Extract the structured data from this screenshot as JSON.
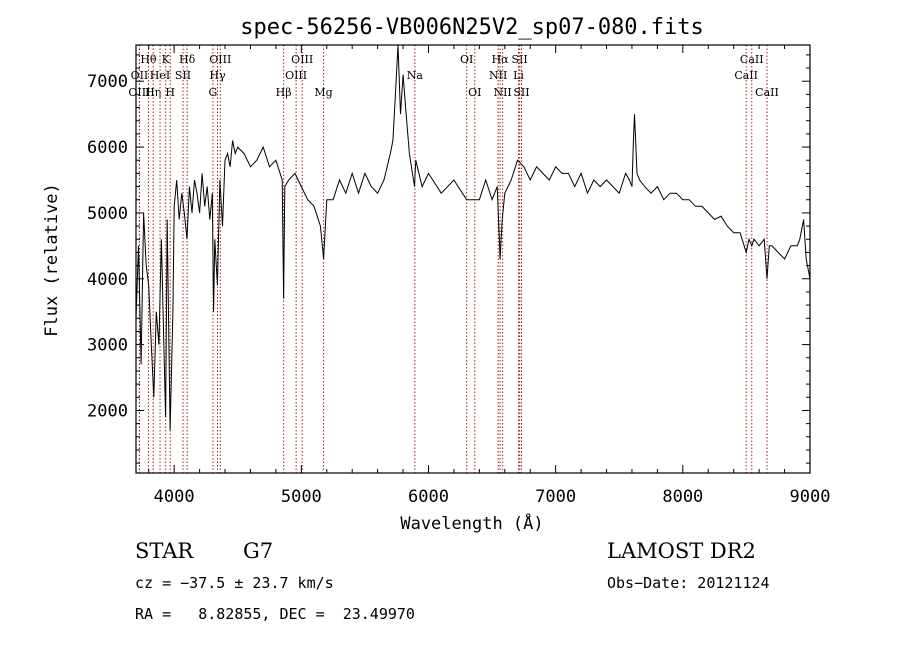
{
  "chart_data": {
    "type": "line",
    "title": "spec-56256-VB006N25V2_sp07-080.fits",
    "xlabel": "Wavelength (Å)",
    "ylabel": "Flux (relative)",
    "xlim": [
      3700,
      9000
    ],
    "ylim": [
      1050,
      7550
    ],
    "xticks": [
      4000,
      5000,
      6000,
      7000,
      8000,
      9000
    ],
    "yticks": [
      2000,
      3000,
      4000,
      5000,
      6000,
      7000
    ],
    "grid": false,
    "series": [
      {
        "x": [
          3700,
          3720,
          3740,
          3760,
          3780,
          3800,
          3820,
          3840,
          3860,
          3880,
          3900,
          3920,
          3933,
          3945,
          3968,
          3990,
          4000,
          4020,
          4040,
          4060,
          4080,
          4101,
          4120,
          4140,
          4160,
          4180,
          4200,
          4220,
          4240,
          4260,
          4280,
          4300,
          4310,
          4320,
          4340,
          4360,
          4380,
          4400,
          4420,
          4440,
          4460,
          4480,
          4500,
          4550,
          4600,
          4650,
          4700,
          4750,
          4800,
          4850,
          4861,
          4870,
          4900,
          4950,
          5000,
          5050,
          5100,
          5150,
          5175,
          5200,
          5250,
          5300,
          5350,
          5400,
          5450,
          5500,
          5550,
          5600,
          5650,
          5700,
          5720,
          5740,
          5760,
          5780,
          5800,
          5820,
          5850,
          5890,
          5900,
          5950,
          6000,
          6100,
          6200,
          6300,
          6400,
          6450,
          6500,
          6540,
          6563,
          6580,
          6600,
          6650,
          6700,
          6750,
          6800,
          6850,
          6900,
          6950,
          7000,
          7050,
          7100,
          7150,
          7200,
          7250,
          7300,
          7350,
          7400,
          7450,
          7500,
          7550,
          7580,
          7600,
          7610,
          7620,
          7640,
          7660,
          7700,
          7750,
          7800,
          7850,
          7900,
          7950,
          8000,
          8050,
          8100,
          8150,
          8200,
          8250,
          8300,
          8350,
          8400,
          8450,
          8498,
          8520,
          8542,
          8560,
          8600,
          8640,
          8662,
          8680,
          8700,
          8750,
          8800,
          8850,
          8900,
          8920,
          8950,
          8970,
          9000
        ],
        "y": [
          3400,
          4500,
          2700,
          5000,
          4200,
          3900,
          3000,
          2200,
          3500,
          3000,
          4600,
          2900,
          1900,
          4900,
          1700,
          3500,
          5100,
          5500,
          4900,
          5300,
          5000,
          4600,
          5400,
          5000,
          5500,
          5300,
          5000,
          5600,
          5100,
          5400,
          4900,
          5300,
          3500,
          4600,
          3900,
          5500,
          4800,
          5800,
          5900,
          5700,
          6100,
          5900,
          6000,
          5900,
          5700,
          5800,
          6000,
          5700,
          5800,
          5500,
          3700,
          5400,
          5500,
          5600,
          5400,
          5200,
          5100,
          4800,
          4300,
          5200,
          5200,
          5500,
          5300,
          5600,
          5300,
          5600,
          5400,
          5300,
          5500,
          5900,
          6100,
          6800,
          7600,
          6500,
          7100,
          6600,
          5900,
          5400,
          5800,
          5400,
          5600,
          5300,
          5500,
          5200,
          5200,
          5500,
          5200,
          5400,
          4300,
          4900,
          5300,
          5500,
          5800,
          5700,
          5500,
          5700,
          5600,
          5500,
          5700,
          5600,
          5600,
          5400,
          5600,
          5300,
          5500,
          5400,
          5500,
          5400,
          5300,
          5600,
          5500,
          5400,
          6000,
          6500,
          5600,
          5500,
          5400,
          5300,
          5400,
          5200,
          5300,
          5300,
          5200,
          5200,
          5100,
          5100,
          5000,
          4900,
          4950,
          4800,
          4700,
          4700,
          4400,
          4600,
          4500,
          4600,
          4500,
          4600,
          4000,
          4500,
          4500,
          4400,
          4300,
          4500,
          4500,
          4600,
          4900,
          4300,
          4000
        ]
      }
    ],
    "line_markers": [
      {
        "label": "Hθ",
        "x": 3798,
        "row": 1
      },
      {
        "label": "OII",
        "x": 3727,
        "row": 2
      },
      {
        "label": "OIII",
        "x": 3727,
        "row": 3
      },
      {
        "label": "Hη",
        "x": 3835,
        "row": 3
      },
      {
        "label": "HeI",
        "x": 3889,
        "row": 2
      },
      {
        "label": "K",
        "x": 3934,
        "row": 1
      },
      {
        "label": "SII",
        "x": 4070,
        "row": 2
      },
      {
        "label": "H",
        "x": 3969,
        "row": 3
      },
      {
        "label": "Hδ",
        "x": 4102,
        "row": 1
      },
      {
        "label": "OIII",
        "x": 4363,
        "row": 1
      },
      {
        "label": "Hγ",
        "x": 4341,
        "row": 2
      },
      {
        "label": "G",
        "x": 4305,
        "row": 3
      },
      {
        "label": "Hβ",
        "x": 4861,
        "row": 3
      },
      {
        "label": "OIII",
        "x": 5007,
        "row": 1
      },
      {
        "label": "OIII",
        "x": 4959,
        "row": 2
      },
      {
        "label": "Mg",
        "x": 5175,
        "row": 3
      },
      {
        "label": "Na",
        "x": 5893,
        "row": 2
      },
      {
        "label": "OI",
        "x": 6300,
        "row": 1
      },
      {
        "label": "OI",
        "x": 6364,
        "row": 3
      },
      {
        "label": "Hα",
        "x": 6563,
        "row": 1
      },
      {
        "label": "SII",
        "x": 6717,
        "row": 1
      },
      {
        "label": "NII",
        "x": 6548,
        "row": 2
      },
      {
        "label": "Li",
        "x": 6708,
        "row": 2
      },
      {
        "label": "NII",
        "x": 6583,
        "row": 3
      },
      {
        "label": "SII",
        "x": 6731,
        "row": 3
      },
      {
        "label": "CaII",
        "x": 8542,
        "row": 1
      },
      {
        "label": "CaII",
        "x": 8498,
        "row": 2
      },
      {
        "label": "CaII",
        "x": 8662,
        "row": 3
      }
    ]
  },
  "info": {
    "object_class": "STAR",
    "subclass": "G7",
    "survey": "LAMOST DR2",
    "cz": "cz = −37.5 ± 23.7 km/s",
    "obs_date": "Obs−Date: 20121124",
    "coords": "RA =   8.82855, DEC =  23.49970"
  },
  "colors": {
    "spectrum": "#000000",
    "marker_line": "#a0201a",
    "axes": "#000000"
  }
}
